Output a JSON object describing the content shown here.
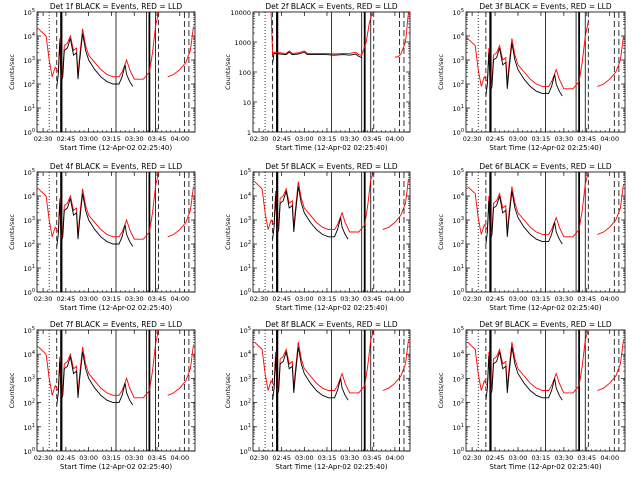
{
  "figure": {
    "xlabel": "Start Time (12-Apr-02 02:25:40)",
    "ylabel": "Counts/sec",
    "ylabel_alt": "Counts/sec",
    "x_tick_labels": [
      "02:30",
      "02:45",
      "03:00",
      "03:15",
      "03:30",
      "03:45",
      "04:00"
    ],
    "colors": {
      "events": "#000000",
      "lld": "#ff0000",
      "axes": "#000000",
      "background": "#ffffff"
    }
  },
  "chart_data": [
    {
      "type": "line",
      "title": "Det 1f BLACK = Events, RED = LLD",
      "x": [
        "02:30",
        "02:45",
        "03:00",
        "03:15",
        "03:30",
        "03:45",
        "04:00"
      ],
      "ylim": [
        1,
        100000
      ],
      "yscale": "log",
      "ytick_labels": [
        "10^0",
        "10^1",
        "10^2",
        "10^3",
        "10^4",
        "10^5"
      ],
      "series": [
        {
          "name": "BLACK = Events",
          "color": "#000000"
        },
        {
          "name": "RED = LLD",
          "color": "#ff0000"
        }
      ]
    },
    {
      "type": "line",
      "title": "Det 2f BLACK = Events, RED = LLD",
      "x": [
        "02:30",
        "02:45",
        "03:00",
        "03:15",
        "03:30",
        "03:45",
        "04:00"
      ],
      "ylim": [
        1,
        10000
      ],
      "yscale": "log",
      "ytick_labels": [
        "1",
        "10",
        "100",
        "1000",
        "10000"
      ],
      "series": [
        {
          "name": "BLACK = Events",
          "color": "#000000"
        },
        {
          "name": "RED = LLD",
          "color": "#ff0000"
        }
      ]
    },
    {
      "type": "line",
      "title": "Det 3f BLACK = Events, RED = LLD",
      "x": [
        "02:30",
        "02:45",
        "03:00",
        "03:15",
        "03:30",
        "03:45",
        "04:00"
      ],
      "ylim": [
        1,
        100000
      ],
      "yscale": "log",
      "ytick_labels": [
        "10^0",
        "10^1",
        "10^2",
        "10^3",
        "10^4",
        "10^5"
      ],
      "series": [
        {
          "name": "BLACK = Events",
          "color": "#000000"
        },
        {
          "name": "RED = LLD",
          "color": "#ff0000"
        }
      ]
    },
    {
      "type": "line",
      "title": "Det 4f BLACK = Events, RED = LLD",
      "x": [
        "02:30",
        "02:45",
        "03:00",
        "03:15",
        "03:30",
        "03:45",
        "04:00"
      ],
      "ylim": [
        1,
        100000
      ],
      "yscale": "log",
      "ytick_labels": [
        "10^0",
        "10^1",
        "10^2",
        "10^3",
        "10^4",
        "10^5"
      ],
      "series": [
        {
          "name": "BLACK = Events",
          "color": "#000000"
        },
        {
          "name": "RED = LLD",
          "color": "#ff0000"
        }
      ]
    },
    {
      "type": "line",
      "title": "Det 5f BLACK = Events, RED = LLD",
      "x": [
        "02:30",
        "02:45",
        "03:00",
        "03:15",
        "03:30",
        "03:45",
        "04:00"
      ],
      "ylim": [
        1,
        100000
      ],
      "yscale": "log",
      "ytick_labels": [
        "10^0",
        "10^1",
        "10^2",
        "10^3",
        "10^4",
        "10^5"
      ],
      "series": [
        {
          "name": "BLACK = Events",
          "color": "#000000"
        },
        {
          "name": "RED = LLD",
          "color": "#ff0000"
        }
      ]
    },
    {
      "type": "line",
      "title": "Det 6f BLACK = Events, RED = LLD",
      "x": [
        "02:30",
        "02:45",
        "03:00",
        "03:15",
        "03:30",
        "03:45",
        "04:00"
      ],
      "ylim": [
        1,
        100000
      ],
      "yscale": "log",
      "ytick_labels": [
        "10^0",
        "10^1",
        "10^2",
        "10^3",
        "10^4",
        "10^5"
      ],
      "series": [
        {
          "name": "BLACK = Events",
          "color": "#000000"
        },
        {
          "name": "RED = LLD",
          "color": "#ff0000"
        }
      ]
    },
    {
      "type": "line",
      "title": "Det 7f BLACK = Events, RED = LLD",
      "x": [
        "02:30",
        "02:45",
        "03:00",
        "03:15",
        "03:30",
        "03:45",
        "04:00"
      ],
      "ylim": [
        1,
        100000
      ],
      "yscale": "log",
      "ytick_labels": [
        "10^0",
        "10^1",
        "10^2",
        "10^3",
        "10^4",
        "10^5"
      ],
      "series": [
        {
          "name": "BLACK = Events",
          "color": "#000000"
        },
        {
          "name": "RED = LLD",
          "color": "#ff0000"
        }
      ]
    },
    {
      "type": "line",
      "title": "Det 8f BLACK = Events, RED = LLD",
      "x": [
        "02:30",
        "02:45",
        "03:00",
        "03:15",
        "03:30",
        "03:45",
        "04:00"
      ],
      "ylim": [
        1,
        100000
      ],
      "yscale": "log",
      "ytick_labels": [
        "10^0",
        "10^1",
        "10^2",
        "10^3",
        "10^4",
        "10^5"
      ],
      "series": [
        {
          "name": "BLACK = Events",
          "color": "#000000"
        },
        {
          "name": "RED = LLD",
          "color": "#ff0000"
        }
      ]
    },
    {
      "type": "line",
      "title": "Det 9f BLACK = Events, RED = LLD",
      "x": [
        "02:30",
        "02:45",
        "03:00",
        "03:15",
        "03:30",
        "03:45",
        "04:00"
      ],
      "ylim": [
        1,
        100000
      ],
      "yscale": "log",
      "ytick_labels": [
        "10^0",
        "10^1",
        "10^2",
        "10^3",
        "10^4",
        "10^5"
      ],
      "series": [
        {
          "name": "BLACK = Events",
          "color": "#000000"
        },
        {
          "name": "RED = LLD",
          "color": "#ff0000"
        }
      ]
    }
  ]
}
